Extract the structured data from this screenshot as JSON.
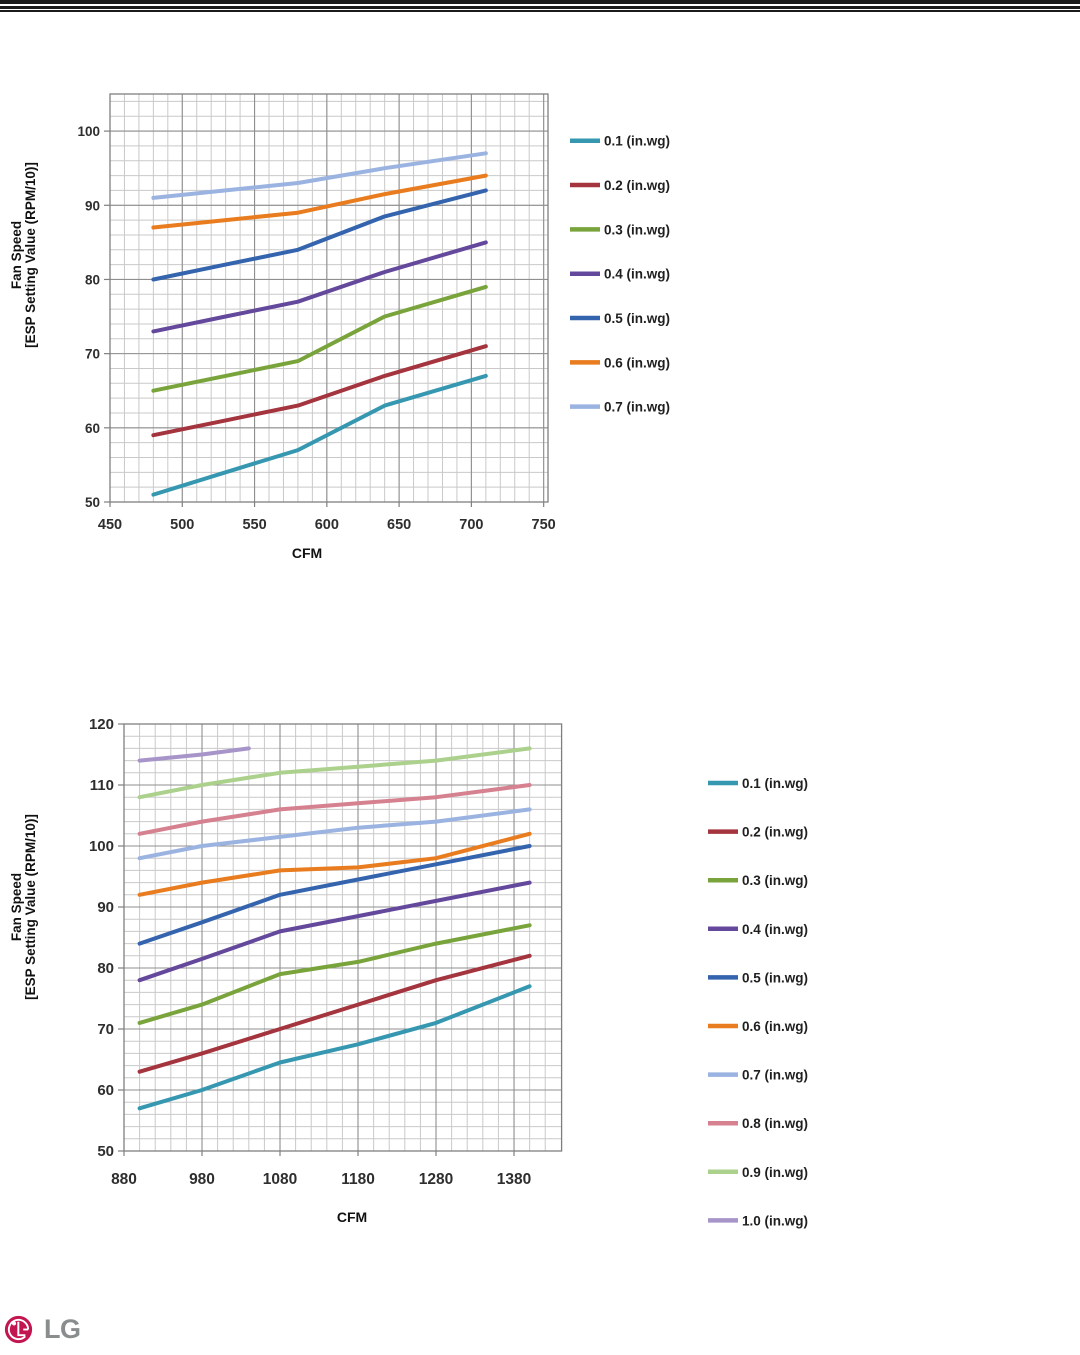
{
  "decor": {
    "top_rule_color": "#1b1b1b",
    "plot_frame_color": "#7f7f7f",
    "major_grid_color": "#8f8f8f",
    "minor_grid_color": "#c9c9c9",
    "tick_label_color": "#2e2e2e",
    "axis_title_color": "#111111",
    "legend_text_color": "#1f1f1f"
  },
  "footer": {
    "logo_text": "LG",
    "logo_symbol_color": "#c3154f",
    "logo_text_color": "#8a8d8e"
  },
  "chart_data": [
    {
      "type": "line",
      "title": "",
      "xlabel": "CFM",
      "ylabel_lines": [
        "Fan Speed",
        "[ESP Setting Value (RPM/10)]"
      ],
      "xlim": [
        450,
        753
      ],
      "ylim": [
        50,
        105
      ],
      "x_ticks": [
        450,
        500,
        550,
        600,
        650,
        700,
        750
      ],
      "y_ticks": [
        50,
        60,
        70,
        80,
        90,
        100
      ],
      "x_minor_step": 10,
      "y_minor_step": 2,
      "grid": true,
      "legend_position": "right-of-plot",
      "series": [
        {
          "name": "0.1 (in.wg)",
          "color": "#3697b1",
          "x": [
            480,
            530,
            580,
            640,
            710
          ],
          "y": [
            51,
            54,
            57,
            63,
            67
          ]
        },
        {
          "name": "0.2 (in.wg)",
          "color": "#a4343e",
          "x": [
            480,
            530,
            580,
            640,
            710
          ],
          "y": [
            59,
            61,
            63,
            67,
            71
          ]
        },
        {
          "name": "0.3 (in.wg)",
          "color": "#79a43c",
          "x": [
            480,
            530,
            580,
            640,
            710
          ],
          "y": [
            65,
            67,
            69,
            75,
            79
          ]
        },
        {
          "name": "0.4 (in.wg)",
          "color": "#64489c",
          "x": [
            480,
            530,
            580,
            640,
            710
          ],
          "y": [
            73,
            75,
            77,
            81,
            85
          ]
        },
        {
          "name": "0.5 (in.wg)",
          "color": "#3464ad",
          "x": [
            480,
            530,
            580,
            640,
            710
          ],
          "y": [
            80,
            82,
            84,
            88.5,
            92
          ]
        },
        {
          "name": "0.6 (in.wg)",
          "color": "#e87c1e",
          "x": [
            480,
            530,
            580,
            640,
            710
          ],
          "y": [
            87,
            88,
            89,
            91.5,
            94
          ]
        },
        {
          "name": "0.7 (in.wg)",
          "color": "#9ab3e0",
          "x": [
            480,
            530,
            580,
            640,
            710
          ],
          "y": [
            91,
            92,
            93,
            95,
            97
          ]
        }
      ]
    },
    {
      "type": "line",
      "title": "",
      "xlabel": "CFM",
      "ylabel_lines": [
        "Fan Speed",
        "[ESP Setting Value (RPM/10)]"
      ],
      "xlim": [
        880,
        1441
      ],
      "ylim": [
        50,
        120
      ],
      "x_ticks": [
        880,
        980,
        1080,
        1180,
        1280,
        1380
      ],
      "y_ticks": [
        50,
        60,
        70,
        80,
        90,
        100,
        110,
        120
      ],
      "x_minor_step": 20,
      "y_minor_step": 2,
      "grid": true,
      "legend_position": "right-of-plot",
      "series": [
        {
          "name": "0.1 (in.wg)",
          "color": "#3697b1",
          "x": [
            900,
            980,
            1080,
            1180,
            1280,
            1400
          ],
          "y": [
            57,
            60,
            64.5,
            67.5,
            71,
            77
          ]
        },
        {
          "name": "0.2 (in.wg)",
          "color": "#a4343e",
          "x": [
            900,
            980,
            1080,
            1180,
            1280,
            1400
          ],
          "y": [
            63,
            66,
            70,
            74,
            78,
            82
          ]
        },
        {
          "name": "0.3 (in.wg)",
          "color": "#79a43c",
          "x": [
            900,
            980,
            1080,
            1180,
            1280,
            1400
          ],
          "y": [
            71,
            74,
            79,
            81,
            84,
            87
          ]
        },
        {
          "name": "0.4 (in.wg)",
          "color": "#64489c",
          "x": [
            900,
            980,
            1080,
            1180,
            1280,
            1400
          ],
          "y": [
            78,
            81.5,
            86,
            88.5,
            91,
            94
          ]
        },
        {
          "name": "0.5 (in.wg)",
          "color": "#3464ad",
          "x": [
            900,
            980,
            1080,
            1180,
            1280,
            1400
          ],
          "y": [
            84,
            87.5,
            92,
            94.5,
            97,
            100
          ]
        },
        {
          "name": "0.6 (in.wg)",
          "color": "#e87c1e",
          "x": [
            900,
            980,
            1080,
            1180,
            1280,
            1400
          ],
          "y": [
            92,
            94,
            96,
            96.5,
            98,
            102
          ]
        },
        {
          "name": "0.7 (in.wg)",
          "color": "#9ab3e0",
          "x": [
            900,
            980,
            1080,
            1180,
            1280,
            1400
          ],
          "y": [
            98,
            100,
            101.5,
            103,
            104,
            106
          ]
        },
        {
          "name": "0.8 (in.wg)",
          "color": "#d5818f",
          "x": [
            900,
            980,
            1080,
            1180,
            1280,
            1400
          ],
          "y": [
            102,
            104,
            106,
            107,
            108,
            110
          ]
        },
        {
          "name": "0.9 (in.wg)",
          "color": "#abd18d",
          "x": [
            900,
            980,
            1080,
            1180,
            1280,
            1400
          ],
          "y": [
            108,
            110,
            112,
            113,
            114,
            116
          ]
        },
        {
          "name": "1.0 (in.wg)",
          "color": "#a795ca",
          "x": [
            900,
            980,
            1040
          ],
          "y": [
            114,
            115,
            116
          ]
        }
      ]
    }
  ]
}
